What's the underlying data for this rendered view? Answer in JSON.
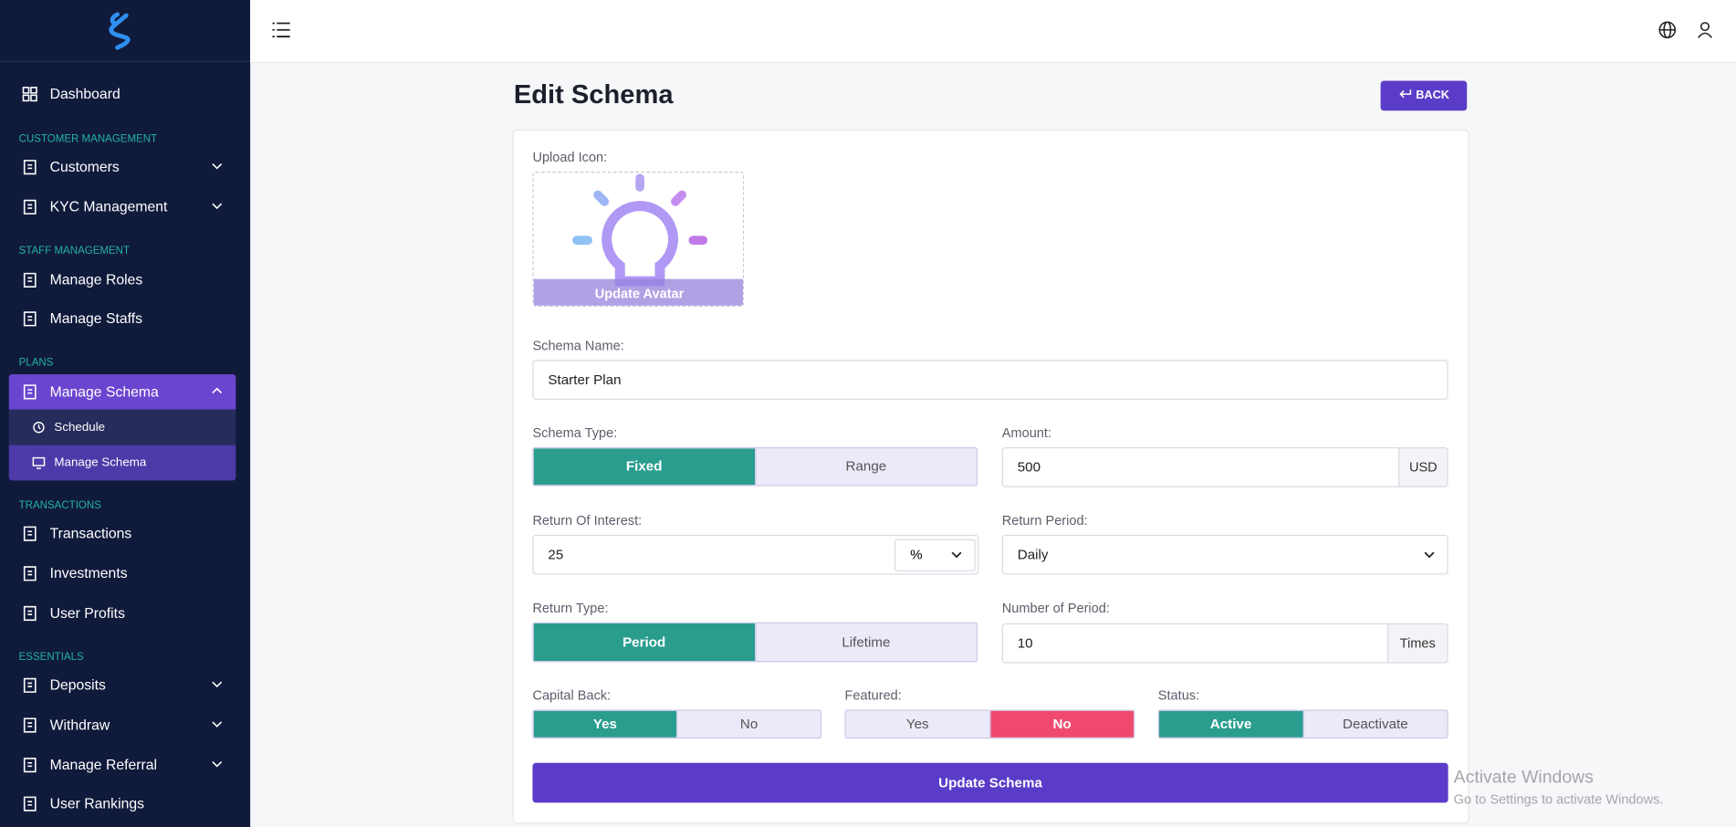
{
  "sidebar": {
    "dashboard": "Dashboard",
    "sections": [
      {
        "title": "CUSTOMER MANAGEMENT",
        "items": [
          "Customers",
          "KYC Management"
        ]
      },
      {
        "title": "STAFF MANAGEMENT",
        "items": [
          "Manage Roles",
          "Manage Staffs"
        ]
      },
      {
        "title": "PLANS",
        "items": [
          "Manage Schema"
        ],
        "subitems": [
          "Schedule",
          "Manage Schema"
        ]
      },
      {
        "title": "TRANSACTIONS",
        "items": [
          "Transactions",
          "Investments",
          "User Profits"
        ]
      },
      {
        "title": "ESSENTIALS",
        "items": [
          "Deposits",
          "Withdraw",
          "Manage Referral",
          "User Rankings"
        ]
      }
    ]
  },
  "header": {
    "title": "Edit Schema",
    "back": "BACK"
  },
  "form": {
    "upload_label": "Upload Icon:",
    "avatar_button": "Update Avatar",
    "schema_name": {
      "label": "Schema Name:",
      "value": "Starter Plan"
    },
    "schema_type": {
      "label": "Schema Type:",
      "options": [
        "Fixed",
        "Range"
      ],
      "selected": 0,
      "active_color": "#2a9d8f"
    },
    "amount": {
      "label": "Amount:",
      "value": 500,
      "unit": "USD"
    },
    "return_of_interest": {
      "label": "Return Of Interest:",
      "value": 25,
      "unit": "%"
    },
    "return_period": {
      "label": "Return Period:",
      "value": "Daily"
    },
    "return_type": {
      "label": "Return Type:",
      "options": [
        "Period",
        "Lifetime"
      ],
      "selected": 0,
      "active_color": "#2a9d8f"
    },
    "number_of_period": {
      "label": "Number of Period:",
      "value": 10,
      "unit": "Times"
    },
    "capital_back": {
      "label": "Capital Back:",
      "options": [
        "Yes",
        "No"
      ],
      "selected": 0,
      "active_color": "#2a9d8f"
    },
    "featured": {
      "label": "Featured:",
      "options": [
        "Yes",
        "No"
      ],
      "selected": 1,
      "active_color": "#ef4a6e"
    },
    "status": {
      "label": "Status:",
      "options": [
        "Active",
        "Deactivate"
      ],
      "selected": 0,
      "active_color": "#2a9d8f"
    },
    "submit": "Update Schema"
  },
  "watermark": {
    "title": "Activate Windows",
    "subtitle": "Go to Settings to activate Windows."
  }
}
